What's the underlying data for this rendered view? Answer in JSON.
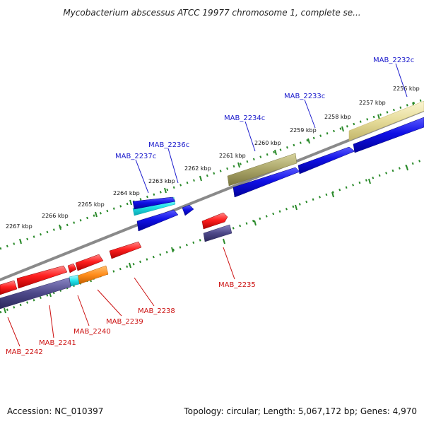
{
  "title": "Mycobacterium abscessus ATCC 19977 chromosome 1, complete se...",
  "accession": "Accession: NC_010397",
  "summary": "Topology: circular; Length: 5,067,172 bp; Genes: 4,970",
  "ruler_labels": [
    "2256 kbp",
    "2257 kbp",
    "2258 kbp",
    "2259 kbp",
    "2260 kbp",
    "2261 kbp",
    "2262 kbp",
    "2263 kbp",
    "2264 kbp",
    "2265 kbp",
    "2266 kbp",
    "2267 kbp"
  ],
  "genes_top": [
    "MAB_2232c",
    "MAB_2233c",
    "MAB_2234c",
    "MAB_2236c",
    "MAB_2237c"
  ],
  "genes_bottom": [
    "MAB_2235",
    "MAB_2238",
    "MAB_2239",
    "MAB_2240",
    "MAB_2241",
    "MAB_2242"
  ],
  "colors": {
    "plus_strand": "#ff1f1f",
    "minus_strand": "#1010e6",
    "backbone": "#8a8a8a",
    "ruler": "#2a8a2a",
    "label_plus": "#cc1111",
    "label_minus": "#1a1acc",
    "olive": "#a9a467",
    "khaki": "#e6dc9a",
    "slate": "#4d4888",
    "cyan": "#22e6ee",
    "orange": "#ff8c1a"
  }
}
